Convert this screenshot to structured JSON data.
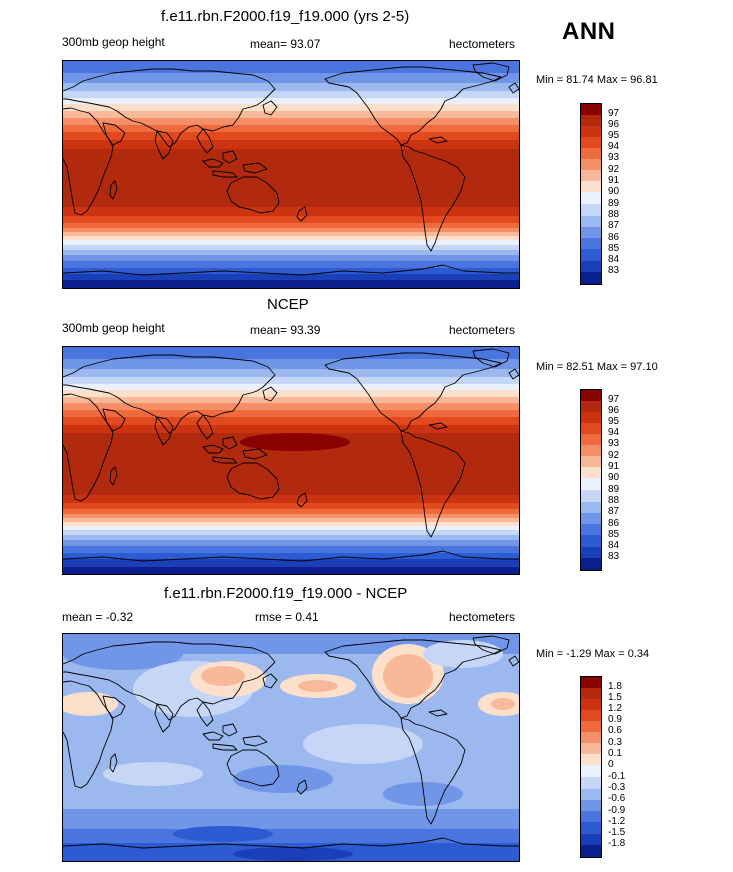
{
  "season": "ANN",
  "panels": [
    {
      "title": "f.e11.rbn.F2000.f19_f19.000 (yrs 2-5)",
      "left_label": "300mb geop height",
      "center_label": "mean=  93.07",
      "units": "hectometers",
      "minmax": "Min =  81.74 Max =  96.81",
      "colorbar_labels": [
        "97",
        "96",
        "95",
        "94",
        "93",
        "92",
        "91",
        "90",
        "89",
        "88",
        "87",
        "86",
        "85",
        "84",
        "83"
      ]
    },
    {
      "title": "NCEP",
      "left_label": "300mb geop height",
      "center_label": "mean=  93.39",
      "units": "hectometers",
      "minmax": "Min =  82.51 Max =  97.10",
      "colorbar_labels": [
        "97",
        "96",
        "95",
        "94",
        "93",
        "92",
        "91",
        "90",
        "89",
        "88",
        "87",
        "86",
        "85",
        "84",
        "83"
      ]
    },
    {
      "title": "f.e11.rbn.F2000.f19_f19.000 - NCEP",
      "left_label": "mean =  -0.32",
      "center_label": "rmse =   0.41",
      "units": "hectometers",
      "minmax": "Min =  -1.29 Max =   0.34",
      "colorbar_labels": [
        "1.8",
        "1.5",
        "1.2",
        "0.9",
        "0.6",
        "0.3",
        "0.1",
        "0",
        "-0.1",
        "-0.3",
        "-0.6",
        "-0.9",
        "-1.2",
        "-1.5",
        "-1.8"
      ]
    }
  ],
  "colors": {
    "palette_16": [
      "#8b0000",
      "#b22a0e",
      "#cc3311",
      "#e04a1e",
      "#ef6a3c",
      "#f48f68",
      "#f8b99a",
      "#fde0cc",
      "#eaf0fc",
      "#c6d6f6",
      "#9bb8ef",
      "#7196e8",
      "#4a75df",
      "#2d5bd3",
      "#1a3fb8",
      "#0b1f8c"
    ],
    "land_outline": "#000000"
  }
}
